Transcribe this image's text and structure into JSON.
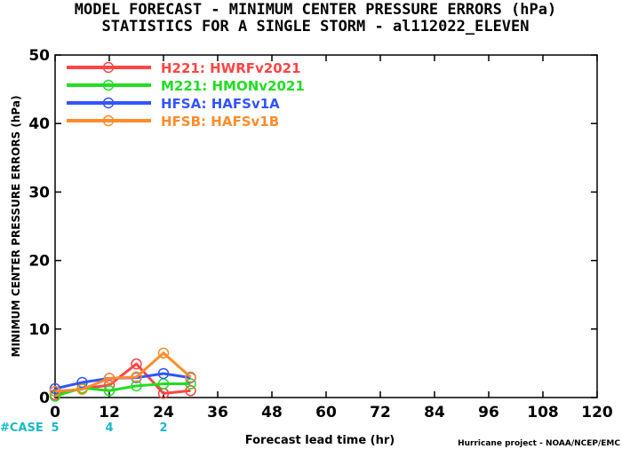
{
  "chart_data": {
    "type": "line",
    "title_line1": "MODEL FORECAST - MINIMUM CENTER PRESSURE ERRORS (hPa)",
    "title_line2": "STATISTICS FOR A SINGLE STORM - al112022_ELEVEN",
    "xlabel": "Forecast lead time (hr)",
    "ylabel": "MINIMUM CENTER PRESSURE ERRORS (hPa)",
    "credit": "Hurricane project - NOAA/NCEP/EMC",
    "xlim": [
      0,
      120
    ],
    "ylim": [
      0,
      50
    ],
    "x_ticks": [
      "0",
      "12",
      "24",
      "36",
      "48",
      "60",
      "72",
      "84",
      "96",
      "108",
      "120"
    ],
    "y_ticks": [
      "0",
      "10",
      "20",
      "30",
      "40",
      "50"
    ],
    "case_label": "#CASE",
    "cases": [
      {
        "x": 0,
        "label": "5"
      },
      {
        "x": 12,
        "label": "4"
      },
      {
        "x": 24,
        "label": "2"
      }
    ],
    "series": [
      {
        "name": "H221",
        "model": "HWRFv2021",
        "color": "#ff4444",
        "x": [
          0,
          6,
          12,
          18,
          24,
          30
        ],
        "y": [
          0.4,
          1.3,
          1.8,
          4.9,
          0.6,
          1.0
        ]
      },
      {
        "name": "M221",
        "model": "HMONv2021",
        "color": "#22dd22",
        "x": [
          0,
          6,
          12,
          18,
          24,
          30
        ],
        "y": [
          0.2,
          1.4,
          1.0,
          1.7,
          2.0,
          2.0
        ]
      },
      {
        "name": "HFSA",
        "model": "HAFSv1A",
        "color": "#3355ff",
        "x": [
          0,
          6,
          12,
          18,
          24,
          30
        ],
        "y": [
          1.3,
          2.2,
          2.8,
          2.9,
          3.5,
          2.9
        ]
      },
      {
        "name": "HFSB",
        "model": "HAFSv1B",
        "color": "#ff8c2a",
        "x": [
          0,
          6,
          12,
          18,
          24,
          30
        ],
        "y": [
          0.9,
          1.2,
          2.8,
          3.0,
          6.5,
          3.0
        ]
      }
    ]
  }
}
